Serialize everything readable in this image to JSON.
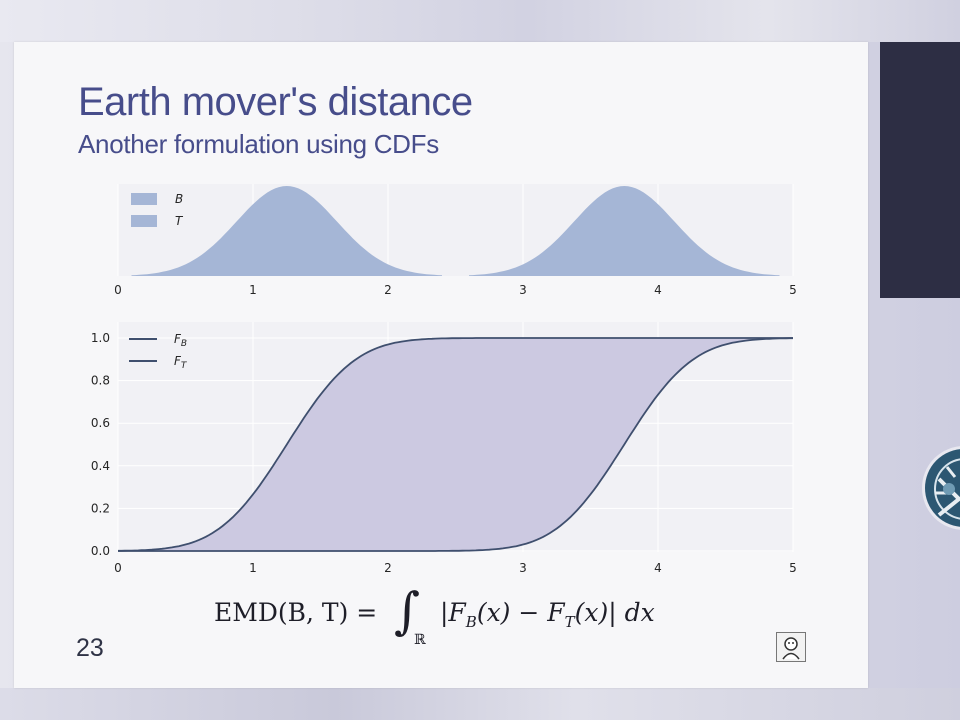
{
  "slide": {
    "title": "Earth mover's distance",
    "subtitle": "Another formulation using CDFs",
    "number": "23"
  },
  "formula": {
    "lhs": "EMD(B, T) =",
    "integral_symbol": "∫",
    "integral_domain": "ℝ",
    "rhs_open": "|F",
    "rhs_sub_b": "B",
    "rhs_mid": "(x) − F",
    "rhs_sub_t": "T",
    "rhs_close": "(x)| dx"
  },
  "colors": {
    "title": "#474d8b",
    "hist_fill": "#a5b6d6",
    "cdf_line": "#3f4f6e",
    "cdf_fill": "#ccc9e1",
    "right_panel": "#2d2e44"
  },
  "icons": {
    "logo": "mascot-logo-icon",
    "badge": "circular-emblem-icon"
  },
  "chart_data": [
    {
      "type": "area",
      "series": [
        {
          "name": "B",
          "x": [
            0.1,
            0.4,
            0.7,
            1.0,
            1.25,
            1.5,
            1.8,
            2.1,
            2.4
          ],
          "values": [
            0.0,
            0.08,
            0.55,
            0.93,
            1.0,
            0.93,
            0.55,
            0.08,
            0.0
          ]
        },
        {
          "name": "T",
          "x": [
            2.6,
            2.9,
            3.2,
            3.5,
            3.75,
            4.0,
            4.3,
            4.6,
            4.9
          ],
          "values": [
            0.0,
            0.08,
            0.55,
            0.93,
            1.0,
            0.93,
            0.55,
            0.08,
            0.0
          ]
        }
      ],
      "xlim": [
        0,
        5
      ],
      "xticks": [
        "0",
        "1",
        "2",
        "3",
        "4",
        "5"
      ],
      "legend": "top-left",
      "grid": true
    },
    {
      "type": "line",
      "series": [
        {
          "name": "F_B",
          "x": [
            0,
            0.25,
            0.5,
            0.75,
            1.0,
            1.25,
            1.5,
            1.75,
            2.0,
            2.25,
            2.5,
            5.0
          ],
          "values": [
            0.0,
            0.0,
            0.03,
            0.13,
            0.32,
            0.56,
            0.79,
            0.94,
            0.99,
            1.0,
            1.0,
            1.0
          ]
        },
        {
          "name": "F_T",
          "x": [
            0,
            2.5,
            2.75,
            3.0,
            3.25,
            3.5,
            3.75,
            4.0,
            4.25,
            4.5,
            4.75,
            5.0
          ],
          "values": [
            0.0,
            0.0,
            0.0,
            0.03,
            0.13,
            0.32,
            0.56,
            0.79,
            0.94,
            0.99,
            1.0,
            1.0
          ]
        }
      ],
      "fill_between": true,
      "xlim": [
        0,
        5
      ],
      "ylim": [
        0,
        1.0
      ],
      "xticks": [
        "0",
        "1",
        "2",
        "3",
        "4",
        "5"
      ],
      "yticks": [
        "0.0",
        "0.2",
        "0.4",
        "0.6",
        "0.8",
        "1.0"
      ],
      "legend_labels": [
        "F",
        "F"
      ],
      "legend_subs": [
        "B",
        "T"
      ],
      "legend": "top-left",
      "grid": true
    }
  ]
}
